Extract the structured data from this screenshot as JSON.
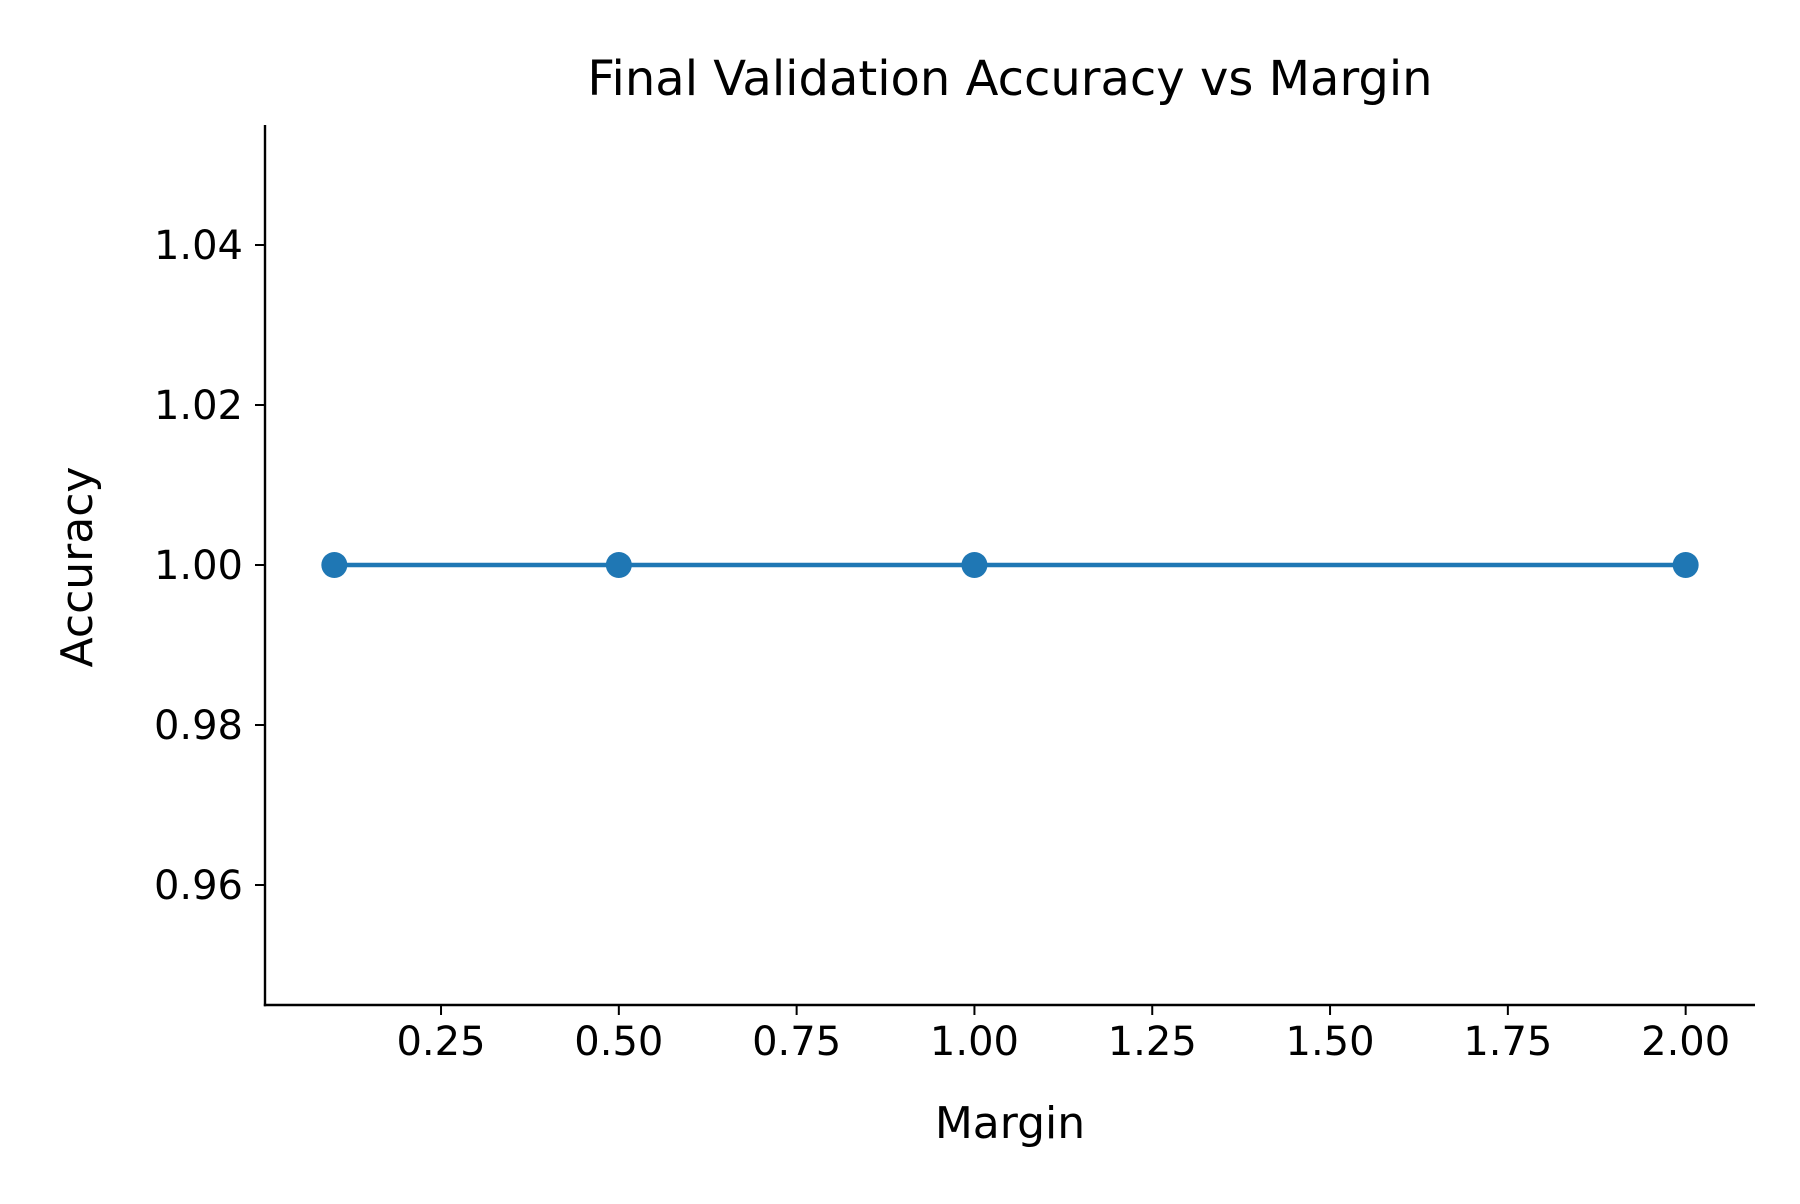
{
  "chart_data": {
    "type": "line",
    "title": "Final Validation Accuracy vs Margin",
    "xlabel": "Margin",
    "ylabel": "Accuracy",
    "x": [
      0.1,
      0.5,
      1.0,
      2.0
    ],
    "series": [
      {
        "values": [
          1.0,
          1.0,
          1.0,
          1.0
        ],
        "color": "#1f77b4",
        "marker": "circle"
      }
    ],
    "xlim": [
      0.0025,
      2.0975
    ],
    "ylim": [
      0.945,
      1.055
    ],
    "xticks": [
      0.25,
      0.5,
      0.75,
      1.0,
      1.25,
      1.5,
      1.75,
      2.0
    ],
    "xtick_labels": [
      "0.25",
      "0.50",
      "0.75",
      "1.00",
      "1.25",
      "1.50",
      "1.75",
      "2.00"
    ],
    "yticks": [
      0.96,
      0.98,
      1.0,
      1.02,
      1.04
    ],
    "ytick_labels": [
      "0.96",
      "0.98",
      "1.00",
      "1.02",
      "1.04"
    ],
    "grid": false,
    "legend": "none",
    "spines": [
      "left",
      "bottom"
    ]
  }
}
